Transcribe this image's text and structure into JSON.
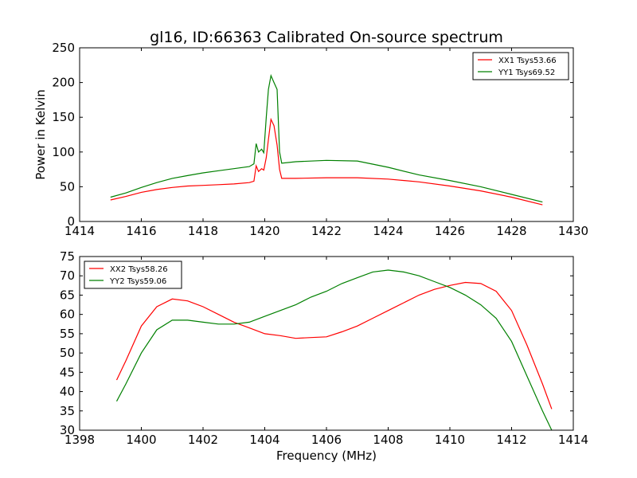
{
  "figure_title": "gl16, ID:66363 Calibrated On-source spectrum",
  "chart_data": [
    {
      "type": "line",
      "title": "gl16, ID:66363 Calibrated On-source spectrum",
      "xlabel": "",
      "ylabel": "Power in Kelvin",
      "xlim": [
        1414,
        1430
      ],
      "ylim": [
        0,
        250
      ],
      "xticks": [
        1414,
        1416,
        1418,
        1420,
        1422,
        1424,
        1426,
        1428,
        1430
      ],
      "yticks": [
        0,
        50,
        100,
        150,
        200,
        250
      ],
      "grid": false,
      "legend_position": "top-right",
      "series": [
        {
          "name": "XX1 Tsys53.66",
          "color": "#ff0000",
          "points": [
            [
              1415.0,
              31
            ],
            [
              1415.5,
              36
            ],
            [
              1416.0,
              42
            ],
            [
              1416.5,
              46
            ],
            [
              1417.0,
              49
            ],
            [
              1417.5,
              51
            ],
            [
              1418.0,
              52
            ],
            [
              1418.5,
              53
            ],
            [
              1419.0,
              54
            ],
            [
              1419.5,
              56
            ],
            [
              1419.65,
              58
            ],
            [
              1419.72,
              80
            ],
            [
              1419.8,
              72
            ],
            [
              1419.9,
              76
            ],
            [
              1419.97,
              74
            ],
            [
              1420.05,
              92
            ],
            [
              1420.12,
              118
            ],
            [
              1420.2,
              147
            ],
            [
              1420.3,
              138
            ],
            [
              1420.4,
              110
            ],
            [
              1420.48,
              75
            ],
            [
              1420.55,
              62
            ],
            [
              1421.0,
              62
            ],
            [
              1422.0,
              63
            ],
            [
              1423.0,
              63
            ],
            [
              1424.0,
              61
            ],
            [
              1425.0,
              57
            ],
            [
              1426.0,
              51
            ],
            [
              1427.0,
              44
            ],
            [
              1428.0,
              35
            ],
            [
              1429.0,
              24
            ]
          ]
        },
        {
          "name": "YY1 Tsys69.52",
          "color": "#008000",
          "points": [
            [
              1415.0,
              35
            ],
            [
              1415.5,
              41
            ],
            [
              1416.0,
              49
            ],
            [
              1416.5,
              56
            ],
            [
              1417.0,
              62
            ],
            [
              1417.5,
              66
            ],
            [
              1418.0,
              70
            ],
            [
              1418.5,
              73
            ],
            [
              1419.0,
              76
            ],
            [
              1419.5,
              79
            ],
            [
              1419.65,
              83
            ],
            [
              1419.72,
              112
            ],
            [
              1419.8,
              100
            ],
            [
              1419.9,
              104
            ],
            [
              1419.97,
              99
            ],
            [
              1420.05,
              150
            ],
            [
              1420.12,
              190
            ],
            [
              1420.2,
              210
            ],
            [
              1420.3,
              200
            ],
            [
              1420.4,
              190
            ],
            [
              1420.48,
              100
            ],
            [
              1420.55,
              84
            ],
            [
              1421.0,
              86
            ],
            [
              1422.0,
              88
            ],
            [
              1423.0,
              87
            ],
            [
              1424.0,
              78
            ],
            [
              1425.0,
              67
            ],
            [
              1426.0,
              59
            ],
            [
              1427.0,
              50
            ],
            [
              1428.0,
              39
            ],
            [
              1429.0,
              28
            ]
          ]
        }
      ]
    },
    {
      "type": "line",
      "title": "",
      "xlabel": "Frequency (MHz)",
      "ylabel": "",
      "xlim": [
        1398,
        1414
      ],
      "ylim": [
        30,
        75
      ],
      "xticks": [
        1398,
        1400,
        1402,
        1404,
        1406,
        1408,
        1410,
        1412,
        1414
      ],
      "yticks": [
        30,
        35,
        40,
        45,
        50,
        55,
        60,
        65,
        70,
        75
      ],
      "grid": false,
      "legend_position": "top-left",
      "series": [
        {
          "name": "XX2 Tsys58.26",
          "color": "#ff0000",
          "points": [
            [
              1399.2,
              43
            ],
            [
              1399.5,
              48
            ],
            [
              1400.0,
              57
            ],
            [
              1400.5,
              62
            ],
            [
              1401.0,
              64
            ],
            [
              1401.5,
              63.5
            ],
            [
              1402.0,
              62
            ],
            [
              1402.5,
              60
            ],
            [
              1403.0,
              58
            ],
            [
              1403.5,
              56.5
            ],
            [
              1404.0,
              55
            ],
            [
              1404.5,
              54.5
            ],
            [
              1405.0,
              53.8
            ],
            [
              1405.5,
              54
            ],
            [
              1406.0,
              54.2
            ],
            [
              1406.5,
              55.5
            ],
            [
              1407.0,
              57
            ],
            [
              1407.5,
              59
            ],
            [
              1408.0,
              61
            ],
            [
              1408.5,
              63
            ],
            [
              1409.0,
              65
            ],
            [
              1409.5,
              66.5
            ],
            [
              1410.0,
              67.5
            ],
            [
              1410.5,
              68.3
            ],
            [
              1411.0,
              68
            ],
            [
              1411.5,
              66
            ],
            [
              1412.0,
              61
            ],
            [
              1412.5,
              52
            ],
            [
              1413.0,
              42
            ],
            [
              1413.3,
              35.5
            ]
          ]
        },
        {
          "name": "YY2 Tsys59.06",
          "color": "#008000",
          "points": [
            [
              1399.2,
              37.5
            ],
            [
              1399.5,
              42
            ],
            [
              1400.0,
              50
            ],
            [
              1400.5,
              56
            ],
            [
              1401.0,
              58.5
            ],
            [
              1401.5,
              58.5
            ],
            [
              1402.0,
              58
            ],
            [
              1402.5,
              57.5
            ],
            [
              1403.0,
              57.5
            ],
            [
              1403.5,
              58
            ],
            [
              1404.0,
              59.5
            ],
            [
              1404.5,
              61
            ],
            [
              1405.0,
              62.5
            ],
            [
              1405.5,
              64.5
            ],
            [
              1406.0,
              66
            ],
            [
              1406.5,
              68
            ],
            [
              1407.0,
              69.5
            ],
            [
              1407.5,
              71
            ],
            [
              1408.0,
              71.5
            ],
            [
              1408.5,
              71
            ],
            [
              1409.0,
              70
            ],
            [
              1409.5,
              68.5
            ],
            [
              1410.0,
              67
            ],
            [
              1410.5,
              65
            ],
            [
              1411.0,
              62.5
            ],
            [
              1411.5,
              59
            ],
            [
              1412.0,
              53
            ],
            [
              1412.5,
              44
            ],
            [
              1413.0,
              35
            ],
            [
              1413.3,
              30
            ]
          ]
        }
      ]
    }
  ]
}
